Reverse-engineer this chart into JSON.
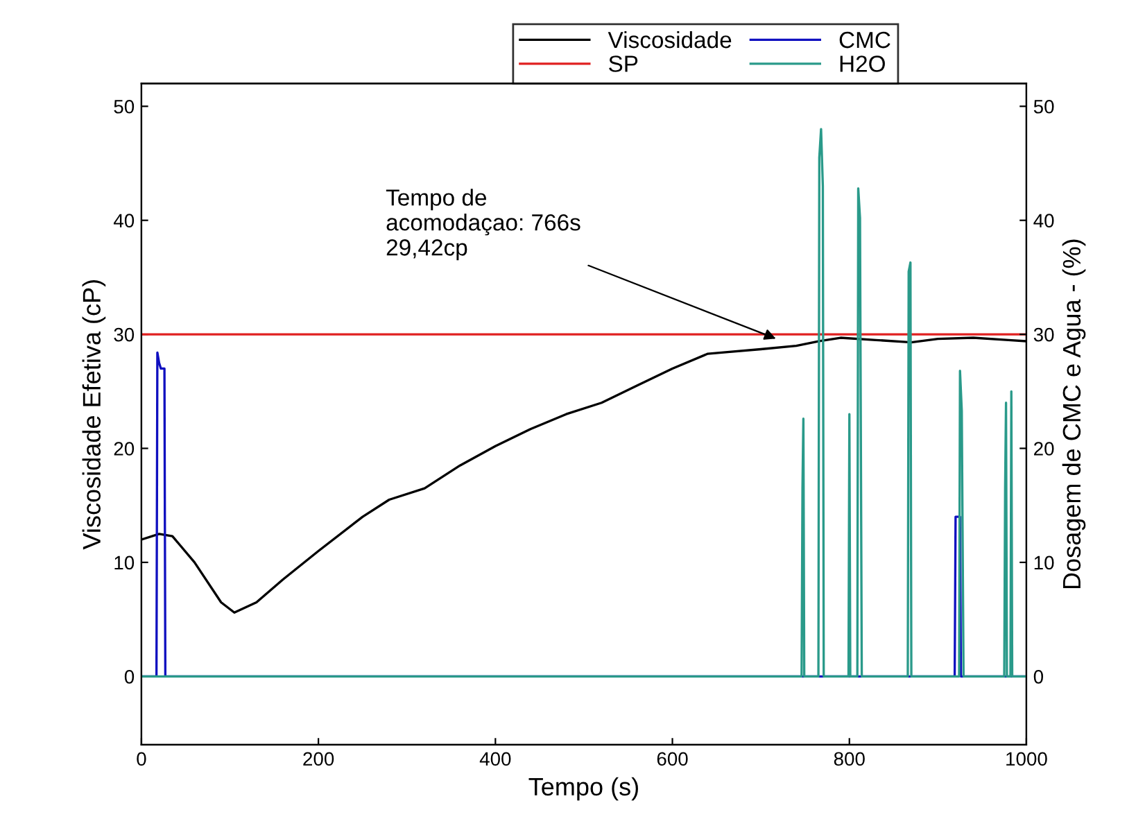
{
  "chart_data": {
    "type": "line",
    "xlabel": "Tempo (s)",
    "ylabel": "Viscosidade Efetiva (cP)",
    "y2label": "Dosagem de CMC e Agua - (%)",
    "xlim": [
      0,
      1000
    ],
    "xticks": [
      0,
      200,
      400,
      600,
      800,
      1000
    ],
    "ylim": [
      -6,
      52
    ],
    "yticks": [
      0,
      10,
      20,
      30,
      40,
      50
    ],
    "y2lim": [
      -6,
      52
    ],
    "y2ticks": [
      0,
      10,
      20,
      30,
      40,
      50
    ],
    "grid": false,
    "legend": "top right",
    "marker": "none",
    "line_style": "solid",
    "annotations": [
      {
        "text": "Tempo de\nacomodaçao: 766s\n29,42cp",
        "x": 721,
        "y": 29.5
      }
    ],
    "series": [
      {
        "name": "Viscosidade",
        "color": "#000000",
        "x": [
          0,
          20,
          35,
          60,
          90,
          105,
          130,
          160,
          200,
          250,
          280,
          320,
          360,
          400,
          440,
          480,
          520,
          560,
          600,
          640,
          700,
          740,
          766,
          790,
          830,
          870,
          900,
          940,
          980,
          1000
        ],
        "values": [
          12,
          12.5,
          12.3,
          10,
          6.5,
          5.6,
          6.5,
          8.5,
          11,
          14,
          15.5,
          16.5,
          18.5,
          20.2,
          21.7,
          23,
          24,
          25.5,
          27,
          28.3,
          28.7,
          29,
          29.4,
          29.7,
          29.5,
          29.3,
          29.6,
          29.7,
          29.5,
          29.4
        ]
      },
      {
        "name": "SP",
        "color": "#e02020",
        "x": [
          0,
          1000
        ],
        "values": [
          30,
          30
        ]
      },
      {
        "name": "CMC",
        "color": "#1010c0",
        "axis": "y2",
        "x": [
          0,
          17,
          18,
          20,
          22,
          25,
          26,
          27,
          28,
          919,
          920,
          925,
          926,
          1000
        ],
        "values": [
          0,
          0,
          28.4,
          27.5,
          27,
          27,
          27,
          0,
          0,
          0,
          14,
          14,
          0,
          0
        ]
      },
      {
        "name": "H2O",
        "color": "#2a9a8a",
        "axis": "y2",
        "x": [
          0,
          746,
          747,
          748,
          749,
          765,
          766,
          768,
          770,
          771,
          799,
          800,
          801,
          809,
          810,
          812,
          814,
          866,
          867,
          869,
          870,
          924,
          925,
          927,
          929,
          975,
          976,
          977,
          978,
          982,
          983,
          984,
          1000
        ],
        "values": [
          0,
          0,
          16.5,
          22.6,
          0,
          0,
          45.5,
          48,
          43,
          0,
          0,
          23,
          0,
          0,
          42.8,
          40.2,
          0,
          0,
          35.5,
          36.3,
          0,
          0,
          26.8,
          23.3,
          0,
          0,
          16.5,
          24,
          0,
          0,
          25,
          0,
          0
        ]
      }
    ]
  }
}
